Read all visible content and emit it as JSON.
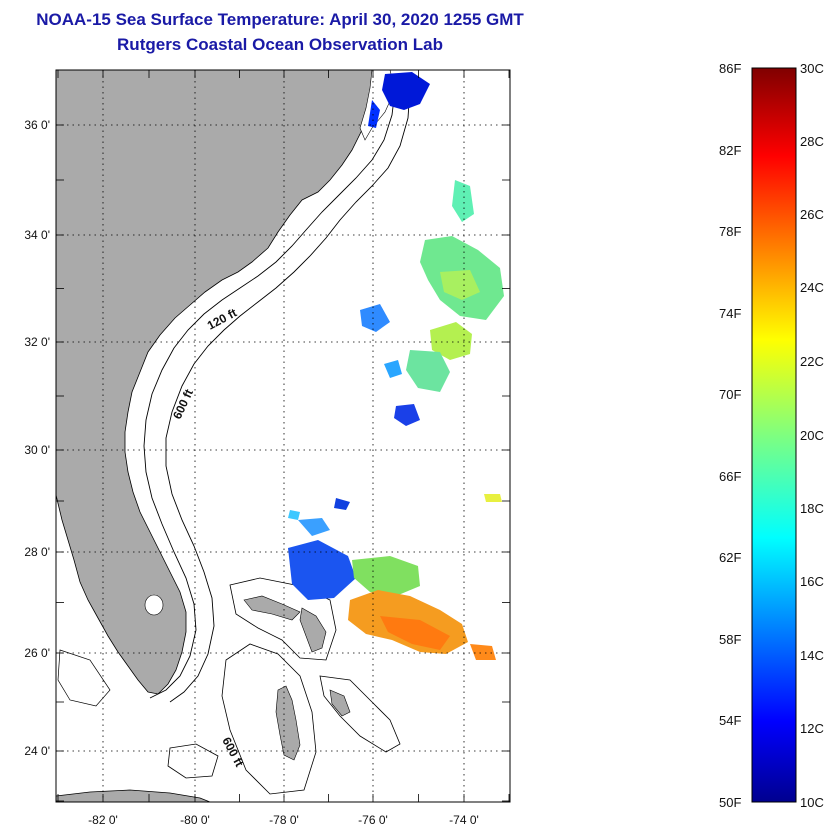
{
  "title": {
    "line1": "NOAA-15 Sea Surface Temperature:  April 30, 2020 1255 GMT",
    "line2": "Rutgers Coastal Ocean Observation Lab"
  },
  "map": {
    "lat_labels": [
      "36 0'",
      "34 0'",
      "32 0'",
      "30 0'",
      "28 0'",
      "26 0'",
      "24 0'"
    ],
    "lon_labels": [
      "-82 0'",
      "-80 0'",
      "-78 0'",
      "-76 0'",
      "-74 0'"
    ],
    "contour_labels": [
      "120 ft",
      "600 ft",
      "600 ft"
    ],
    "land_color": "#aaaaaa",
    "water_color": "#ffffff"
  },
  "colorbar": {
    "fahrenheit_labels": [
      "86F",
      "82F",
      "78F",
      "74F",
      "70F",
      "66F",
      "62F",
      "58F",
      "54F",
      "50F"
    ],
    "celsius_labels": [
      "30C",
      "28C",
      "26C",
      "24C",
      "22C",
      "20C",
      "18C",
      "16C",
      "14C",
      "12C",
      "10C"
    ],
    "colormap": "jet",
    "range_f": [
      50,
      86
    ],
    "range_c": [
      10,
      30
    ]
  }
}
